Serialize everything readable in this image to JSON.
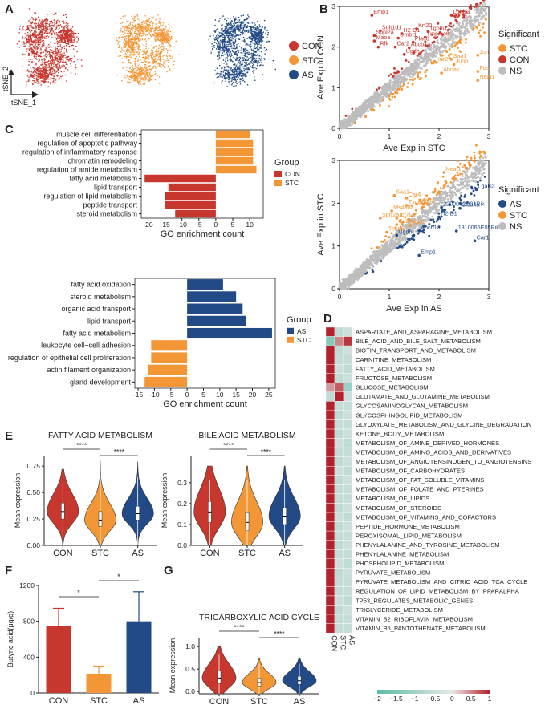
{
  "colors": {
    "CON": "#c8372d",
    "STC": "#f39636",
    "AS": "#214a87",
    "NS": "#bdbdbd"
  },
  "panels": [
    "A",
    "B",
    "C",
    "D",
    "E",
    "F",
    "G"
  ],
  "panel_a": {
    "groups": [
      {
        "name": "CON",
        "color": "#c8372d"
      },
      {
        "name": "STC",
        "color": "#f39636"
      },
      {
        "name": "AS",
        "color": "#214a87"
      }
    ],
    "axis_x": "tSNE_1",
    "axis_y": "tSNE_2"
  },
  "chart_data": [
    {
      "id": "b1",
      "type": "scatter",
      "xlabel": "Ave Exp in STC",
      "ylabel": "Ave Exp in CON",
      "xlim": [
        0,
        3
      ],
      "ylim": [
        0,
        3
      ],
      "x_ticks": [
        "0",
        "1",
        "2",
        "3"
      ],
      "y_ticks": [
        "0",
        "1",
        "2",
        "3"
      ],
      "legend_title": "Significant",
      "legend": [
        {
          "name": "STC",
          "color": "#f39636"
        },
        {
          "name": "CON",
          "color": "#c8372d"
        },
        {
          "name": "NS",
          "color": "#bdbdbd"
        }
      ],
      "labels": [
        {
          "text": "Emp1",
          "x": 0.65,
          "y": 2.78,
          "group": "CON"
        },
        {
          "text": "Lgals3",
          "x": 2.25,
          "y": 2.78,
          "group": "CON"
        },
        {
          "text": "Krt20",
          "x": 1.55,
          "y": 2.45,
          "group": "CON"
        },
        {
          "text": "Sult1d1",
          "x": 0.82,
          "y": 2.4,
          "group": "CON"
        },
        {
          "text": "H2-D1",
          "x": 1.25,
          "y": 2.33,
          "group": "CON"
        },
        {
          "text": "Tgoln1",
          "x": 1.78,
          "y": 2.38,
          "group": "CON"
        },
        {
          "text": "Sppl2a",
          "x": 0.7,
          "y": 2.28,
          "group": "CON"
        },
        {
          "text": "Dmbt1",
          "x": 1.18,
          "y": 2.22,
          "group": "CON"
        },
        {
          "text": "Tmprss6",
          "x": 1.72,
          "y": 2.24,
          "group": "CON"
        },
        {
          "text": "Maoa",
          "x": 0.7,
          "y": 2.15,
          "group": "CON"
        },
        {
          "text": "Plac8",
          "x": 1.48,
          "y": 2.12,
          "group": "CON"
        },
        {
          "text": "Rfk",
          "x": 0.78,
          "y": 2.0,
          "group": "CON"
        },
        {
          "text": "Car2",
          "x": 1.12,
          "y": 2.0,
          "group": "CON"
        },
        {
          "text": "Abcb1a",
          "x": 1.4,
          "y": 1.98,
          "group": "CON"
        },
        {
          "text": "Ugdh",
          "x": 1.3,
          "y": 1.82,
          "group": "CON"
        },
        {
          "text": "Jun",
          "x": 2.78,
          "y": 1.8,
          "group": "STC"
        },
        {
          "text": "Saa1",
          "x": 2.25,
          "y": 1.7,
          "group": "STC"
        },
        {
          "text": "Junb",
          "x": 2.3,
          "y": 1.57,
          "group": "STC"
        },
        {
          "text": "Ier2",
          "x": 1.95,
          "y": 1.62,
          "group": "STC"
        },
        {
          "text": "Fos",
          "x": 2.78,
          "y": 1.4,
          "group": "STC"
        },
        {
          "text": "Ahnak",
          "x": 2.05,
          "y": 1.36,
          "group": "STC"
        },
        {
          "text": "Neat1",
          "x": 2.78,
          "y": 1.18,
          "group": "STC"
        }
      ]
    },
    {
      "id": "b2",
      "type": "scatter",
      "xlabel": "Ave Exp in AS",
      "ylabel": "Ave Exp in STC",
      "xlim": [
        0,
        3
      ],
      "ylim": [
        0,
        3
      ],
      "x_ticks": [
        "0",
        "1",
        "2",
        "3"
      ],
      "y_ticks": [
        "0",
        "1",
        "2",
        "3"
      ],
      "legend_title": "Significant",
      "legend": [
        {
          "name": "AS",
          "color": "#214a87"
        },
        {
          "name": "STC",
          "color": "#f39636"
        },
        {
          "name": "NS",
          "color": "#bdbdbd"
        }
      ],
      "labels": [
        {
          "text": "Neat1",
          "x": 2.1,
          "y": 2.72,
          "group": "STC"
        },
        {
          "text": "Lgals3",
          "x": 2.75,
          "y": 2.32,
          "group": "AS"
        },
        {
          "text": "Saa1",
          "x": 1.1,
          "y": 2.18,
          "group": "STC"
        },
        {
          "text": "Car4",
          "x": 1.35,
          "y": 2.12,
          "group": "STC"
        },
        {
          "text": "Igfbp3",
          "x": 1.55,
          "y": 1.98,
          "group": "STC"
        },
        {
          "text": "Txnip",
          "x": 1.35,
          "y": 1.95,
          "group": "STC"
        },
        {
          "text": "2200002D01Rik",
          "x": 2.05,
          "y": 1.9,
          "group": "AS"
        },
        {
          "text": "Clca4a",
          "x": 2.42,
          "y": 1.88,
          "group": "AS"
        },
        {
          "text": "Ms4a8a",
          "x": 1.05,
          "y": 1.82,
          "group": "STC"
        },
        {
          "text": "Sprr2a3",
          "x": 0.82,
          "y": 1.65,
          "group": "STC"
        },
        {
          "text": "Tcf7l2",
          "x": 1.15,
          "y": 1.65,
          "group": "STC"
        },
        {
          "text": "H2-D1",
          "x": 2.0,
          "y": 1.68,
          "group": "AS"
        },
        {
          "text": "Cd24a",
          "x": 1.15,
          "y": 1.5,
          "group": "STC"
        },
        {
          "text": "Itgb4",
          "x": 1.42,
          "y": 1.48,
          "group": "STC"
        },
        {
          "text": "Tent5c",
          "x": 0.95,
          "y": 1.32,
          "group": "STC"
        },
        {
          "text": "Abcb1a",
          "x": 1.6,
          "y": 1.35,
          "group": "AS"
        },
        {
          "text": "1810065E05Rik",
          "x": 2.35,
          "y": 1.35,
          "group": "AS"
        },
        {
          "text": "Ugdh",
          "x": 1.15,
          "y": 1.25,
          "group": "AS"
        },
        {
          "text": "Car1",
          "x": 2.72,
          "y": 1.12,
          "group": "AS"
        },
        {
          "text": "Emp1",
          "x": 1.6,
          "y": 0.78,
          "group": "AS"
        }
      ]
    },
    {
      "id": "c1",
      "type": "bar",
      "orientation": "horizontal",
      "xlabel": "GO enrichment count",
      "xlim": [
        -22,
        14
      ],
      "x_ticks": [
        "-20",
        "-15",
        "-10",
        "-5",
        "0",
        "5",
        "10"
      ],
      "legend_title": "Group",
      "legend": [
        {
          "name": "CON",
          "color": "#c8372d"
        },
        {
          "name": "STC",
          "color": "#f39636"
        }
      ],
      "categories": [
        "muscle cell differentiation",
        "regulation of apoptotic pathway",
        "regulation of inflammatory response",
        "chromatin remodeling",
        "regulation of amide metabolism",
        "fatty acid metabolism",
        "lipid transport",
        "regulation of lipid metabolism",
        "peptide transport",
        "steroid metabolism"
      ],
      "values": [
        10,
        11,
        11,
        11,
        12,
        -21,
        -14,
        -15,
        -15,
        -12
      ],
      "groups": [
        "STC",
        "STC",
        "STC",
        "STC",
        "STC",
        "CON",
        "CON",
        "CON",
        "CON",
        "CON"
      ]
    },
    {
      "id": "c2",
      "type": "bar",
      "orientation": "horizontal",
      "xlabel": "GO enrichment count",
      "xlim": [
        -16,
        27
      ],
      "x_ticks": [
        "-15",
        "-10",
        "-5",
        "0",
        "5",
        "10",
        "15",
        "20",
        "25"
      ],
      "legend_title": "Group",
      "legend": [
        {
          "name": "AS",
          "color": "#214a87"
        },
        {
          "name": "STC",
          "color": "#f39636"
        }
      ],
      "categories": [
        "fatty acid oxidation",
        "steroid metabolism",
        "organic acid transport",
        "lipid transport",
        "fatty acid metabolism",
        "leukocyte cell−cell adhesion",
        "regulation of epithelial cell proliferation",
        "actin filament organization",
        "gland development"
      ],
      "values": [
        11,
        15,
        17,
        18,
        26,
        -11,
        -11,
        -12,
        -13
      ],
      "groups": [
        "AS",
        "AS",
        "AS",
        "AS",
        "AS",
        "STC",
        "STC",
        "STC",
        "STC"
      ]
    },
    {
      "id": "d",
      "type": "heatmap",
      "columns": [
        "CON",
        "STC",
        "AS"
      ],
      "rows": [
        "ASPARTATE_AND_ASPARAGINE_METABOLISM",
        "BILE_ACID_AND_BILE_SALT_METABOLISM",
        "BIOTIN_TRANSPORT_AND_METABOLISM",
        "CARNITINE_METABOLISM",
        "FATTY_ACID_METABOLISM",
        "FRUCTOSE_METABOLISM",
        "GLUCOSE_METABOLISM",
        "GLUTAMATE_AND_GLUTAMINE_METABOLISM",
        "GLYCOSAMINOGLYCAN_METABOLISM",
        "GLYCOSPHINGOLIPID_METABOLISM",
        "GLYOXYLATE_METABOLISM_AND_GLYCINE_DEGRADATION",
        "KETONE_BODY_METABOLISM",
        "METABOLISM_OF_AMINE_DERIVED_HORMONES",
        "METABOLISM_OF_AMINO_ACIDS_AND_DERIVATIVES",
        "METABOLISM_OF_ANGIOTENSINOGEN_TO_ANGIOTENSINS",
        "METABOLISM_OF_CARBOHYDRATES",
        "METABOLISM_OF_FAT_SOLUBLE_VITAMINS",
        "METABOLISM_OF_FOLATE_AND_PTERINES",
        "METABOLISM_OF_LIPIDS",
        "METABOLISM_OF_STEROIDS",
        "METABOLISM_OF_VITAMINS_AND_COFACTORS",
        "PEPTIDE_HORMONE_METABOLISM",
        "PEROXISOMAL_LIPID_METABOLISM",
        "PHENYLALANINE_AND_TYROSINE_METABOLISM",
        "PHENYLALANINE_METABOLISM",
        "PHOSPHOLIPID_METABOLISM",
        "PYRUVATE_METABOLISM",
        "PYRUVATE_METABOLISM_AND_CITRIC_ACID_TCA_CYCLE",
        "REGULATION_OF_LIPID_METABOLISM_BY_PPARALPHA",
        "TP53_REGULATES_METABOLIC_GENES",
        "TRIGLYCERIDE_METABOLISM",
        "VITAMIN_B2_RIBOFLAVIN_METABOLISM",
        "VITAMIN_B5_PANTOTHENATE_METABOLISM"
      ],
      "values": [
        [
          1.0,
          -0.6,
          -0.4
        ],
        [
          -1.4,
          0.5,
          0.9
        ],
        [
          1.0,
          -0.6,
          -0.4
        ],
        [
          1.0,
          -0.5,
          -0.5
        ],
        [
          1.0,
          -0.4,
          -0.6
        ],
        [
          1.0,
          -0.6,
          -0.4
        ],
        [
          0.4,
          0.7,
          -1.1
        ],
        [
          -0.6,
          1.0,
          -0.4
        ],
        [
          1.0,
          -0.5,
          -0.5
        ],
        [
          1.0,
          -0.6,
          -0.4
        ],
        [
          1.0,
          -0.5,
          -0.5
        ],
        [
          1.0,
          -0.6,
          -0.4
        ],
        [
          1.0,
          -0.4,
          -0.6
        ],
        [
          1.0,
          -0.5,
          -0.5
        ],
        [
          1.0,
          -0.6,
          -0.4
        ],
        [
          1.0,
          -0.4,
          -0.6
        ],
        [
          1.0,
          -0.6,
          -0.4
        ],
        [
          1.0,
          -0.5,
          -0.5
        ],
        [
          1.0,
          -0.5,
          -0.5
        ],
        [
          1.0,
          -0.6,
          -0.4
        ],
        [
          1.0,
          -0.4,
          -0.6
        ],
        [
          1.0,
          -0.6,
          -0.4
        ],
        [
          1.0,
          -0.5,
          -0.5
        ],
        [
          1.0,
          -0.6,
          -0.4
        ],
        [
          1.0,
          -0.5,
          -0.5
        ],
        [
          1.0,
          -0.4,
          -0.6
        ],
        [
          1.0,
          -0.6,
          -0.4
        ],
        [
          1.0,
          -0.5,
          -0.5
        ],
        [
          1.0,
          -0.5,
          -0.5
        ],
        [
          1.0,
          -0.4,
          -0.6
        ],
        [
          1.0,
          -0.6,
          -0.4
        ],
        [
          1.0,
          -0.5,
          -0.5
        ],
        [
          1.0,
          -0.5,
          -0.5
        ]
      ],
      "scale_min": -2,
      "scale_max": 1,
      "colorbar_ticks": [
        "−2",
        "−1.5",
        "−1",
        "−0.5",
        "0",
        "0.5",
        "1"
      ]
    },
    {
      "id": "e1",
      "type": "violin",
      "title": "FATTY ACID METABOLISM",
      "ylabel": "Mean expression",
      "categories": [
        "CON",
        "STC",
        "AS"
      ],
      "ylim": [
        0,
        0.85
      ],
      "y_ticks": [
        "0.00",
        "0.25",
        "0.50",
        "0.75"
      ],
      "medians": [
        0.32,
        0.24,
        0.3
      ],
      "q1": [
        0.25,
        0.18,
        0.24
      ],
      "q3": [
        0.4,
        0.32,
        0.37
      ],
      "max": [
        0.72,
        0.8,
        0.79
      ],
      "significance": [
        {
          "from": "CON",
          "to": "STC",
          "label": "****"
        },
        {
          "from": "STC",
          "to": "AS",
          "label": "****"
        }
      ]
    },
    {
      "id": "e2",
      "type": "violin",
      "title": "BILE ACID METABOLISM",
      "ylabel": "Mean expression",
      "categories": [
        "CON",
        "STC",
        "AS"
      ],
      "ylim": [
        0,
        0.43
      ],
      "y_ticks": [
        "0.0",
        "0.1",
        "0.2",
        "0.3"
      ],
      "medians": [
        0.16,
        0.11,
        0.14
      ],
      "q1": [
        0.11,
        0.07,
        0.1
      ],
      "q3": [
        0.21,
        0.16,
        0.18
      ],
      "max": [
        0.38,
        0.38,
        0.38
      ],
      "significance": [
        {
          "from": "CON",
          "to": "STC",
          "label": "****"
        },
        {
          "from": "STC",
          "to": "AS",
          "label": "****"
        }
      ]
    },
    {
      "id": "f",
      "type": "bar",
      "ylabel": "Butyric acid(μg/g)",
      "categories": [
        "CON",
        "STC",
        "AS"
      ],
      "values": [
        745,
        215,
        800
      ],
      "errors": [
        200,
        85,
        330
      ],
      "ylim": [
        0,
        1200
      ],
      "y_ticks": [
        "0",
        "400",
        "800",
        "1200"
      ],
      "significance": [
        {
          "from": "CON",
          "to": "STC",
          "label": "*"
        },
        {
          "from": "STC",
          "to": "AS",
          "label": "*"
        }
      ]
    },
    {
      "id": "g",
      "type": "violin",
      "title": "TRICARBOXYLIC ACID CYCLE",
      "ylabel": "Mean expression",
      "categories": [
        "CON",
        "STC",
        "AS"
      ],
      "ylim": [
        -0.05,
        1.2
      ],
      "y_ticks": [
        "0.0",
        "0.5",
        "1.0"
      ],
      "medians": [
        0.3,
        0.2,
        0.24
      ],
      "q1": [
        0.18,
        0.12,
        0.16
      ],
      "q3": [
        0.46,
        0.3,
        0.34
      ],
      "max": [
        1.0,
        0.75,
        0.75
      ],
      "significance": [
        {
          "from": "CON",
          "to": "STC",
          "label": "****"
        },
        {
          "from": "STC",
          "to": "AS",
          "label": "****"
        }
      ]
    }
  ]
}
